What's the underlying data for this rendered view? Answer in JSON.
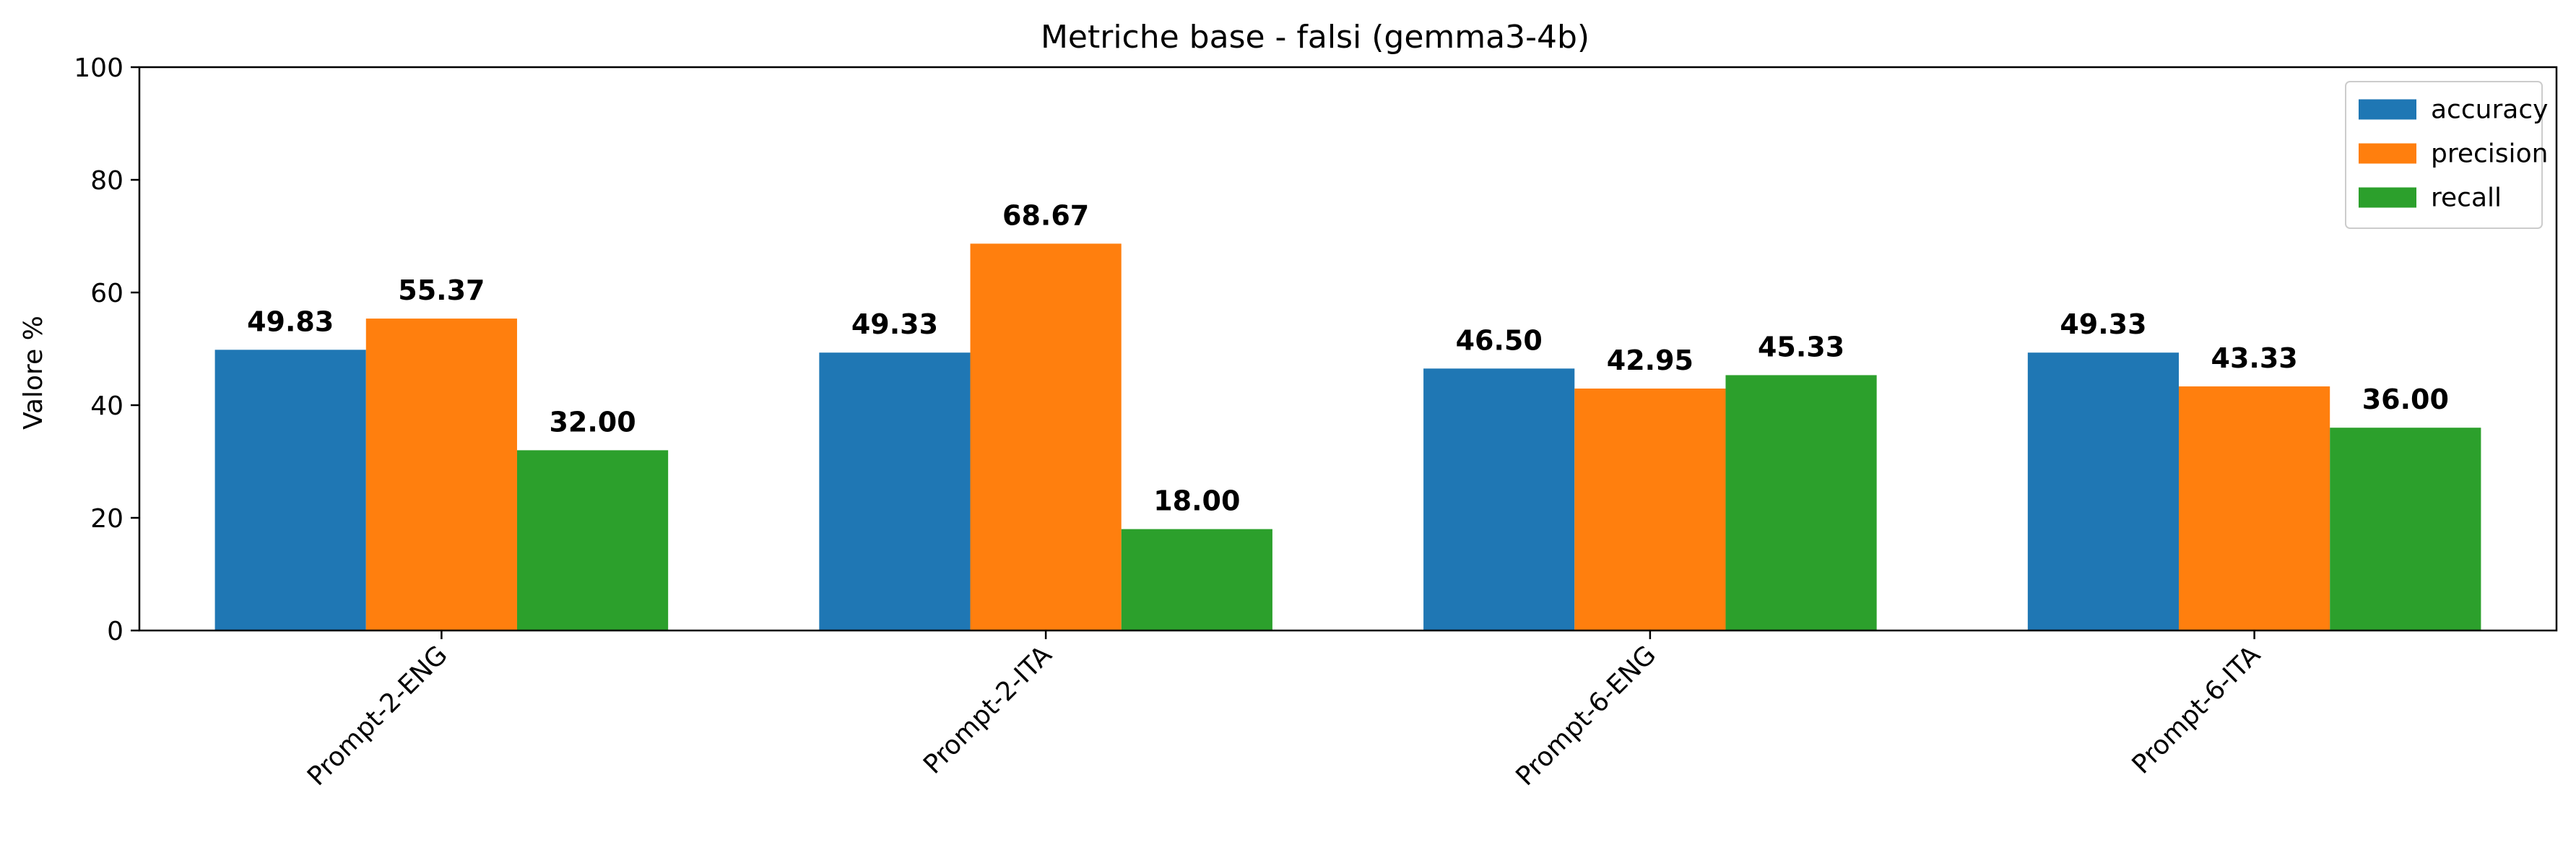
{
  "chart_data": {
    "type": "bar",
    "title": "Metriche base - falsi (gemma3-4b)",
    "xlabel": "",
    "ylabel": "Valore %",
    "ylim": [
      0,
      100
    ],
    "yticks": [
      0,
      20,
      40,
      60,
      80,
      100
    ],
    "categories": [
      "Prompt-2-ENG",
      "Prompt-2-ITA",
      "Prompt-6-ENG",
      "Prompt-6-ITA"
    ],
    "series": [
      {
        "name": "accuracy",
        "color": "#1f77b4",
        "values": [
          49.83,
          49.33,
          46.5,
          49.33
        ],
        "labels": [
          "49.83",
          "49.33",
          "46.50",
          "49.33"
        ]
      },
      {
        "name": "precision",
        "color": "#ff7f0e",
        "values": [
          55.37,
          68.67,
          42.95,
          43.33
        ],
        "labels": [
          "55.37",
          "68.67",
          "42.95",
          "43.33"
        ]
      },
      {
        "name": "recall",
        "color": "#2ca02c",
        "values": [
          32.0,
          18.0,
          45.33,
          36.0
        ],
        "labels": [
          "32.00",
          "18.00",
          "45.33",
          "36.00"
        ]
      }
    ],
    "grid": false,
    "legend_position": "top-right"
  }
}
